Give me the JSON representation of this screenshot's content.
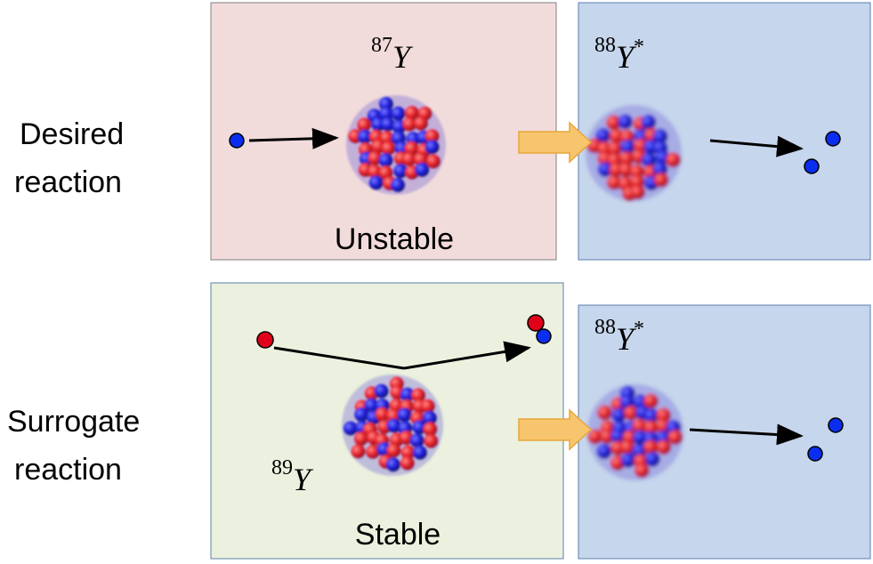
{
  "rows": [
    {
      "label_lines": [
        "Desired",
        "reaction"
      ],
      "target": {
        "mass": "87",
        "symbol": "Y",
        "status": "Unstable"
      },
      "compound": {
        "mass": "88",
        "symbol": "Y",
        "mark": "*"
      }
    },
    {
      "label_lines": [
        "Surrogate",
        "reaction"
      ],
      "target": {
        "mass": "89",
        "symbol": "Y",
        "status": "Stable"
      },
      "compound": {
        "mass": "88",
        "symbol": "Y",
        "mark": "*"
      }
    }
  ]
}
